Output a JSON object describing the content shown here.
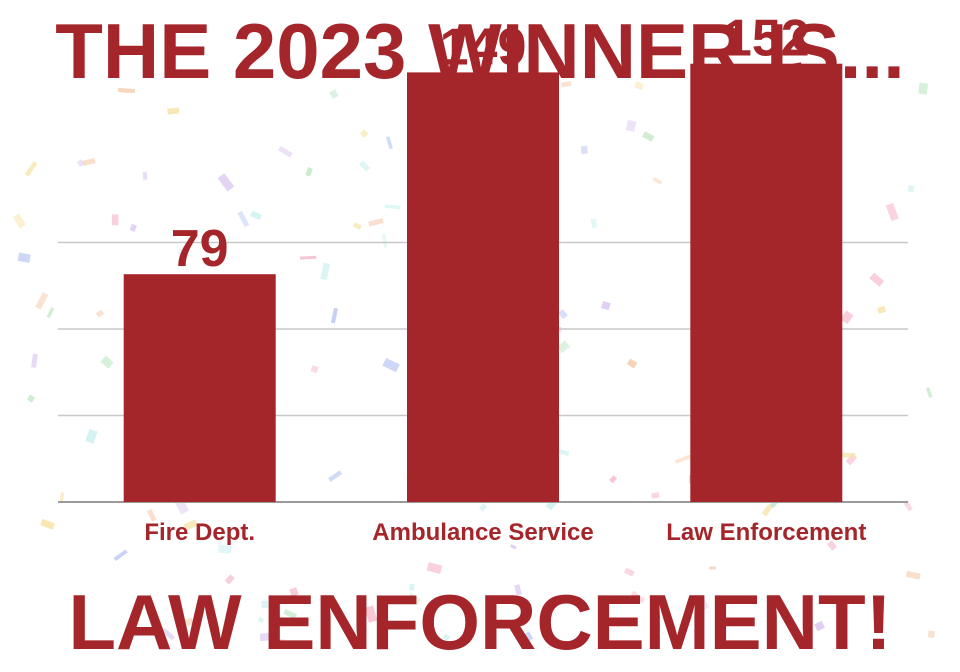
{
  "headline": {
    "top": "THE 2023 WINNER IS...",
    "bottom": "LAW ENFORCEMENT!"
  },
  "colors": {
    "accent": "#a4262b",
    "grid": "#c8c8c8",
    "background": "#ffffff"
  },
  "chart_data": {
    "type": "bar",
    "categories": [
      "Fire Dept.",
      "Ambulance Service",
      "Law Enforcement"
    ],
    "values": [
      79,
      149,
      152
    ],
    "title": "THE 2023 WINNER IS...",
    "xlabel": "",
    "ylabel": "",
    "ylim": [
      0,
      150
    ],
    "grid": true,
    "data_labels": true,
    "legend": "none"
  }
}
